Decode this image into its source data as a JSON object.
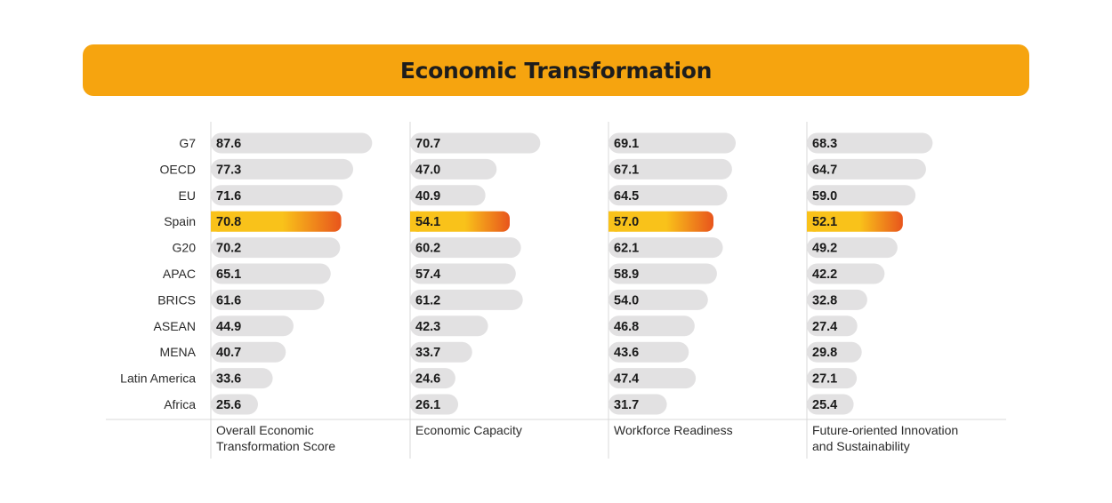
{
  "title": "Economic Transformation",
  "colors": {
    "title_bg": "#f6a40f",
    "bar": "#e2e1e2",
    "highlight_start": "#f9c21a",
    "highlight_end": "#e8551c",
    "grid": "#d9d9d9"
  },
  "chart_data": {
    "type": "bar",
    "orientation": "horizontal",
    "title": "Economic Transformation",
    "categories": [
      "G7",
      "OECD",
      "EU",
      "Spain",
      "G20",
      "APAC",
      "BRICS",
      "ASEAN",
      "MENA",
      "Latin America",
      "Africa"
    ],
    "highlight": "Spain",
    "xlim": [
      0,
      100
    ],
    "series": [
      {
        "name": "Overall Economic Transformation Score",
        "label_lines": [
          "Overall Economic",
          "Transformation Score"
        ],
        "values": [
          87.6,
          77.3,
          71.6,
          70.8,
          70.2,
          65.1,
          61.6,
          44.9,
          40.7,
          33.6,
          25.6
        ]
      },
      {
        "name": "Economic Capacity",
        "label_lines": [
          "Economic Capacity"
        ],
        "values": [
          70.7,
          47.0,
          40.9,
          54.1,
          60.2,
          57.4,
          61.2,
          42.3,
          33.7,
          24.6,
          26.1
        ]
      },
      {
        "name": "Workforce Readiness",
        "label_lines": [
          "Workforce Readiness"
        ],
        "values": [
          69.1,
          67.1,
          64.5,
          57.0,
          62.1,
          58.9,
          54.0,
          46.8,
          43.6,
          47.4,
          31.7
        ]
      },
      {
        "name": "Future-oriented Innovation and Sustainability",
        "label_lines": [
          "Future-oriented Innovation",
          "and  Sustainability"
        ],
        "values": [
          68.3,
          64.7,
          59.0,
          52.1,
          49.2,
          42.2,
          32.8,
          27.4,
          29.8,
          27.1,
          25.4
        ]
      }
    ]
  }
}
